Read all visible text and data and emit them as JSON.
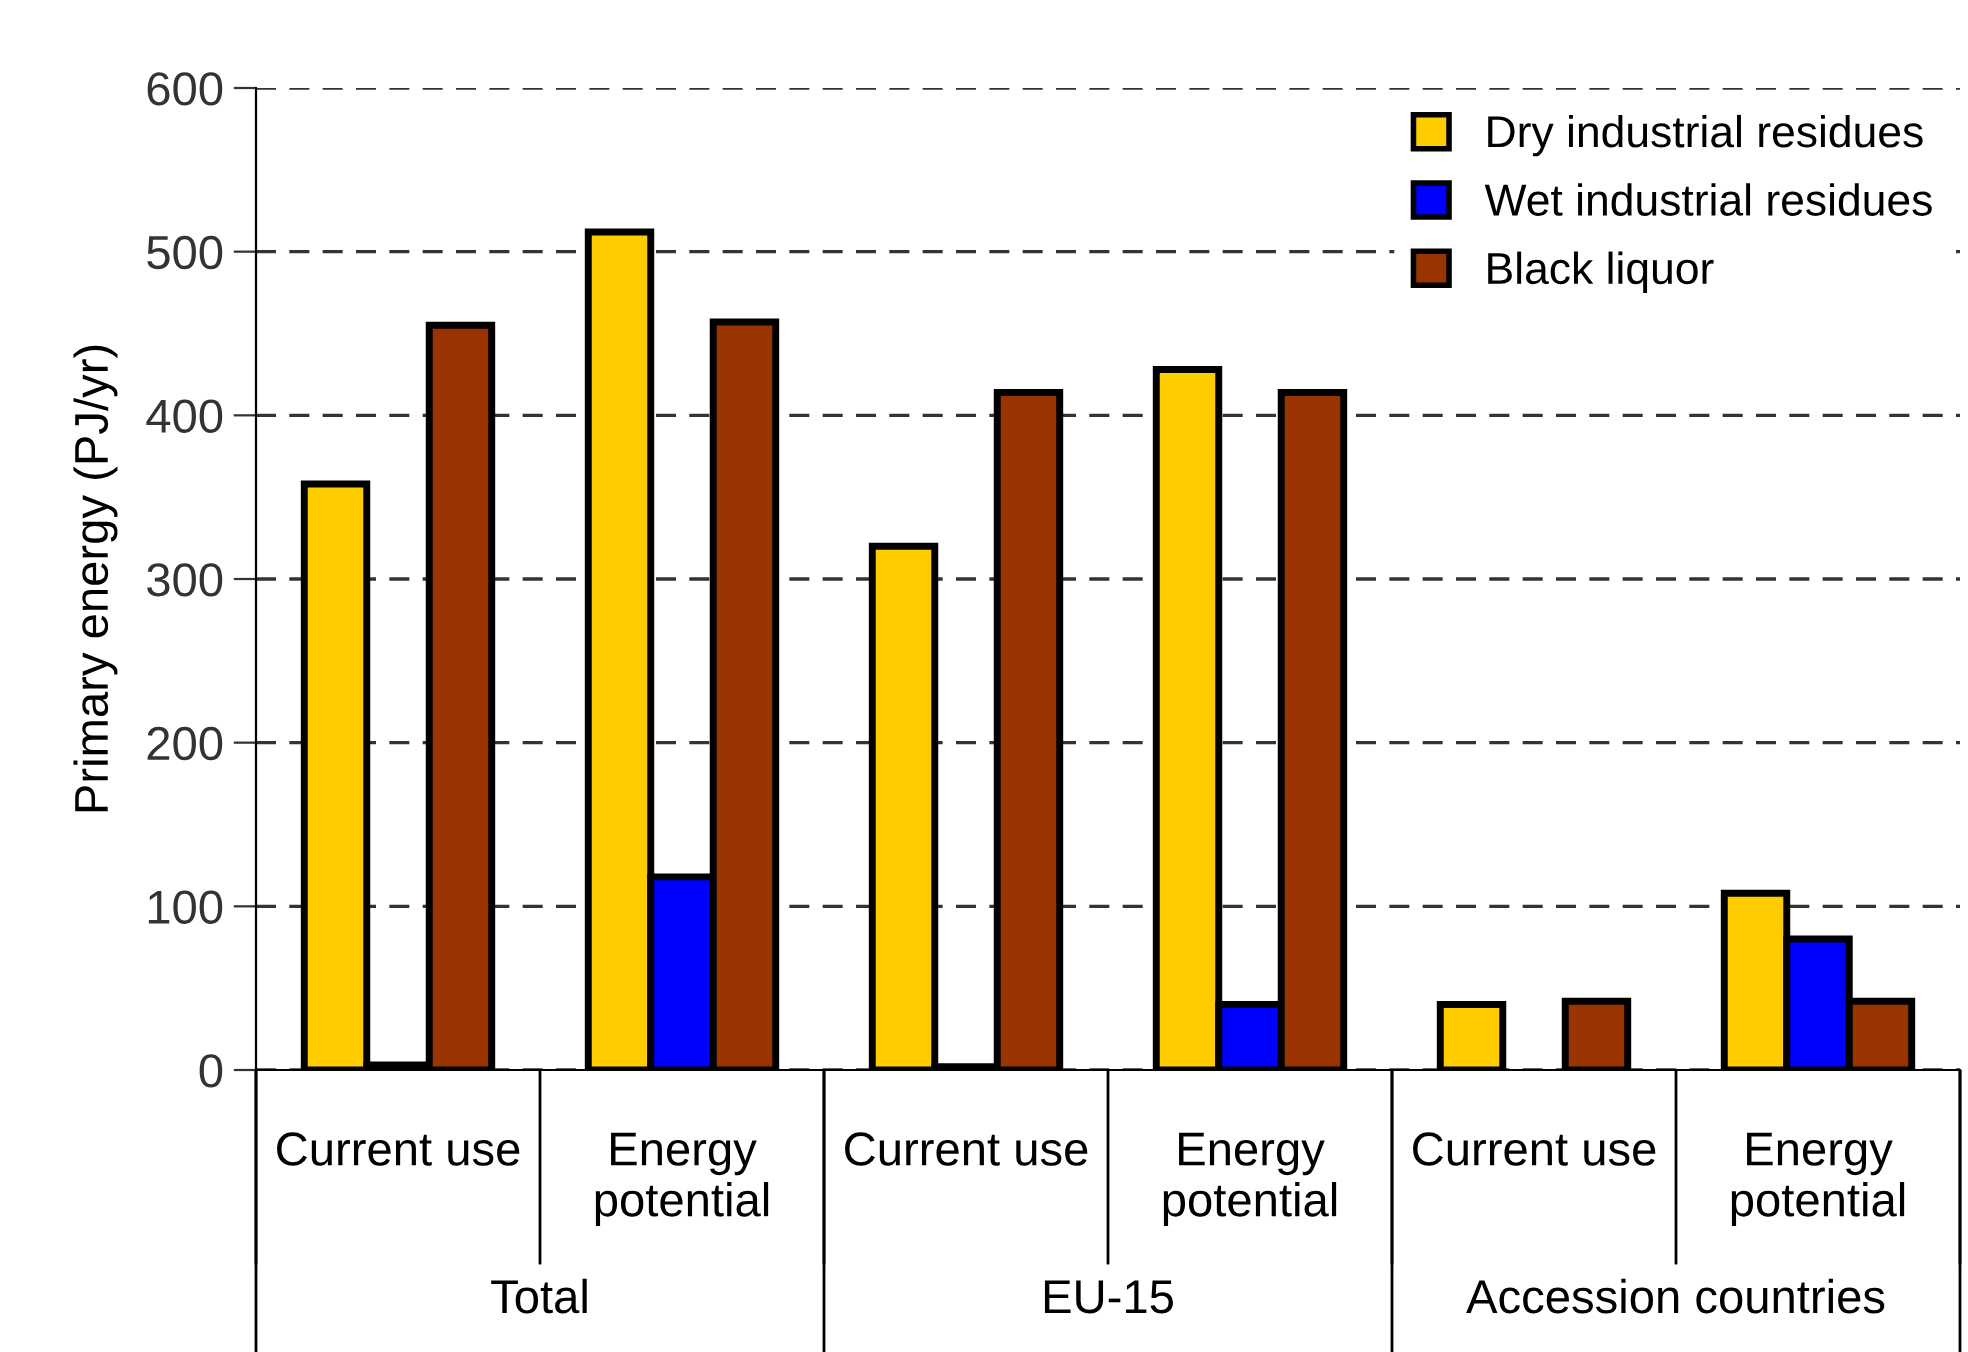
{
  "chart_data": {
    "type": "bar",
    "ylabel": "Primary energy (PJ/yr)",
    "categories": [
      "Current use",
      "Energy\npotential",
      "Current use",
      "Energy\npotential",
      "Current use",
      "Energy\npotential"
    ],
    "series": [
      {
        "name": "Dry industrial residues",
        "color": "#ffcc00",
        "values": [
          358,
          512,
          320,
          428,
          40,
          108
        ]
      },
      {
        "name": "Wet industrial residues",
        "color": "#0000ff",
        "values": [
          3,
          118,
          2,
          40,
          null,
          80
        ]
      },
      {
        "name": "Black liquor",
        "color": "#993300",
        "values": [
          455,
          457,
          414,
          414,
          42,
          42
        ]
      }
    ],
    "annotations": [
      "Total",
      "EU-15",
      "Accession countries"
    ],
    "ylim": [
      0,
      600
    ],
    "yticks": [
      0,
      100,
      200,
      300,
      400,
      500,
      600
    ],
    "grid": "y",
    "legend": "top right"
  }
}
